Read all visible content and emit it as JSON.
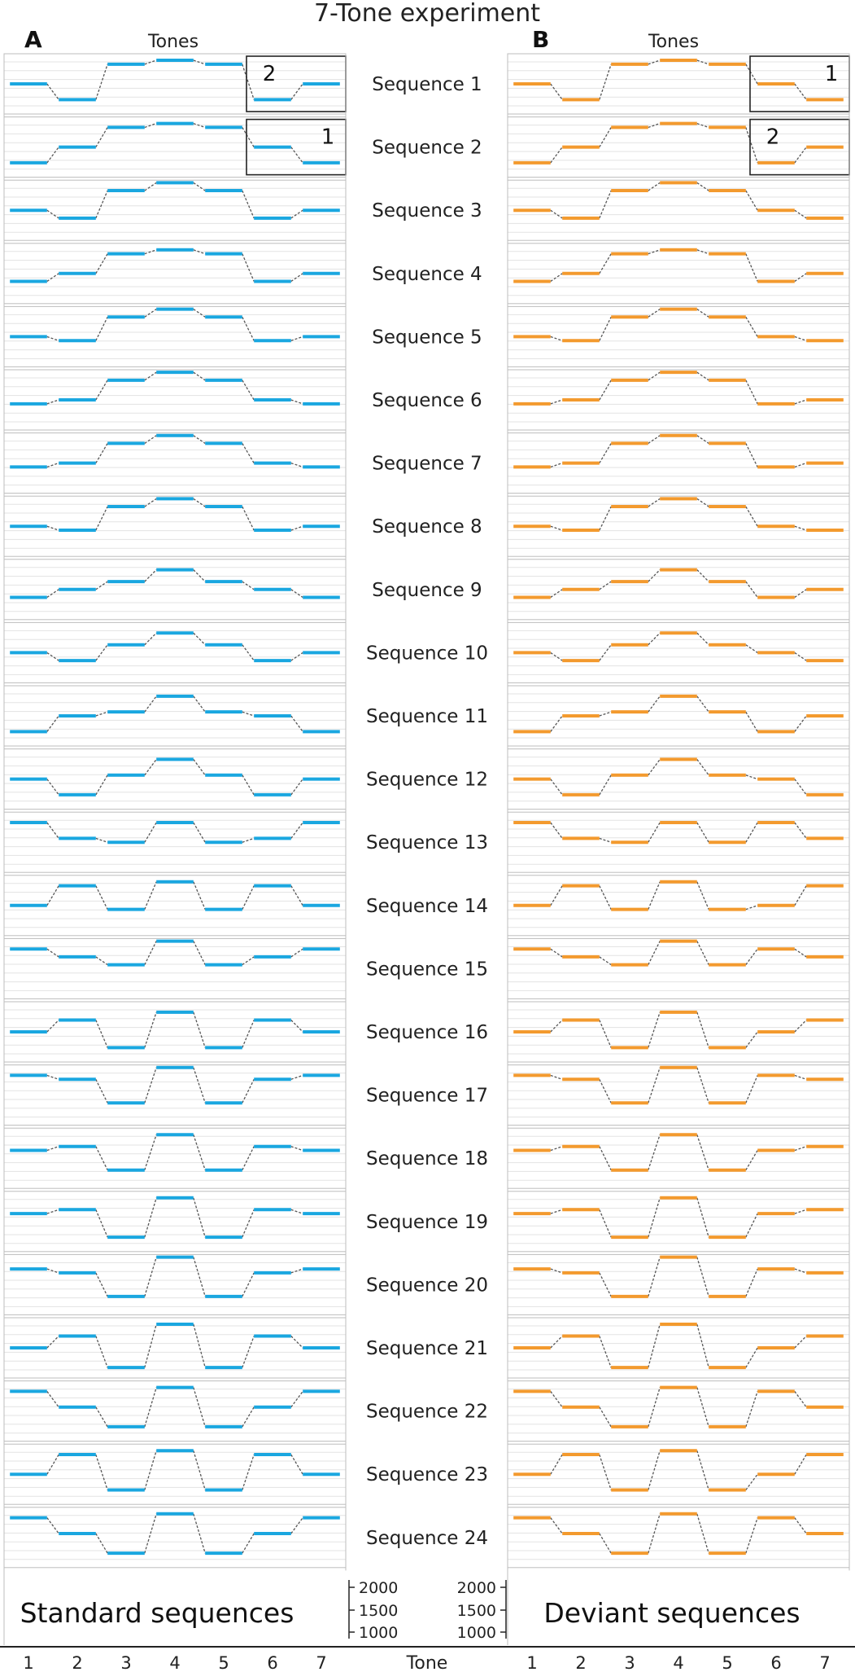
{
  "title": "7-Tone experiment",
  "panel_a": {
    "letter": "A",
    "header": "Tones",
    "caption": "Standard sequences"
  },
  "panel_b": {
    "letter": "B",
    "header": "Tones",
    "caption": "Deviant sequences"
  },
  "x_axis": {
    "label": "Tone",
    "ticks": [
      "1",
      "2",
      "3",
      "4",
      "5",
      "6",
      "7"
    ]
  },
  "y_axis": {
    "ticks": [
      "2000",
      "1500",
      "1000"
    ]
  },
  "colors": {
    "standard": "#1aa7e0",
    "deviant": "#f39a2e",
    "connector": "#555555",
    "grid": "#e3e3e3",
    "border": "#bdbdbd"
  },
  "chart_data": {
    "type": "line",
    "x": [
      1,
      2,
      3,
      4,
      5,
      6,
      7
    ],
    "ylim": [
      900,
      2100
    ],
    "ylabel": "",
    "xlabel": "Tone",
    "annotations": {
      "standard": [
        {
          "sequence": 1,
          "tones": [
            6,
            7
          ],
          "label": "2"
        },
        {
          "sequence": 2,
          "tones": [
            6,
            7
          ],
          "label": "1"
        }
      ],
      "deviant": [
        {
          "sequence": 1,
          "tones": [
            6,
            7
          ],
          "label": "1"
        },
        {
          "sequence": 2,
          "tones": [
            6,
            7
          ],
          "label": "2"
        }
      ]
    },
    "series": [
      {
        "name": "Sequence 1",
        "standard": [
          1500,
          1100,
          2000,
          2100,
          2000,
          1100,
          1500
        ],
        "deviant": [
          1500,
          1100,
          2000,
          2100,
          2000,
          1500,
          1100
        ]
      },
      {
        "name": "Sequence 2",
        "standard": [
          1100,
          1500,
          2000,
          2100,
          2000,
          1500,
          1100
        ],
        "deviant": [
          1100,
          1500,
          2000,
          2100,
          2000,
          1100,
          1500
        ]
      },
      {
        "name": "Sequence 3",
        "standard": [
          1500,
          1300,
          2000,
          2200,
          2000,
          1300,
          1500
        ],
        "deviant": [
          1500,
          1300,
          2000,
          2200,
          2000,
          1500,
          1300
        ]
      },
      {
        "name": "Sequence 4",
        "standard": [
          1300,
          1500,
          2000,
          2100,
          2000,
          1300,
          1500
        ],
        "deviant": [
          1300,
          1500,
          2000,
          2100,
          2000,
          1300,
          1500
        ]
      },
      {
        "name": "Sequence 5",
        "standard": [
          1500,
          1400,
          2000,
          2200,
          2000,
          1400,
          1500
        ],
        "deviant": [
          1500,
          1400,
          2000,
          2200,
          2000,
          1500,
          1400
        ]
      },
      {
        "name": "Sequence 6",
        "standard": [
          1400,
          1500,
          2000,
          2200,
          2000,
          1500,
          1400
        ],
        "deviant": [
          1400,
          1500,
          2000,
          2200,
          2000,
          1400,
          1500
        ]
      },
      {
        "name": "Sequence 7",
        "standard": [
          1400,
          1500,
          2000,
          2200,
          2000,
          1500,
          1400
        ],
        "deviant": [
          1400,
          1500,
          2000,
          2200,
          2000,
          1400,
          1500
        ]
      },
      {
        "name": "Sequence 8",
        "standard": [
          1500,
          1400,
          2000,
          2200,
          2000,
          1400,
          1500
        ],
        "deviant": [
          1500,
          1400,
          2000,
          2200,
          2000,
          1500,
          1400
        ]
      },
      {
        "name": "Sequence 9",
        "standard": [
          1300,
          1500,
          1700,
          2000,
          1700,
          1500,
          1300
        ],
        "deviant": [
          1300,
          1500,
          1700,
          2000,
          1700,
          1300,
          1500
        ]
      },
      {
        "name": "Sequence 10",
        "standard": [
          1500,
          1300,
          1700,
          2000,
          1700,
          1300,
          1500
        ],
        "deviant": [
          1500,
          1300,
          1700,
          2000,
          1700,
          1500,
          1300
        ]
      },
      {
        "name": "Sequence 11",
        "standard": [
          1100,
          1500,
          1600,
          2000,
          1600,
          1500,
          1100
        ],
        "deviant": [
          1100,
          1500,
          1600,
          2000,
          1600,
          1100,
          1500
        ]
      },
      {
        "name": "Sequence 12",
        "standard": [
          1500,
          1100,
          1600,
          2000,
          1600,
          1100,
          1500
        ],
        "deviant": [
          1500,
          1100,
          1600,
          2000,
          1600,
          1500,
          1100
        ]
      },
      {
        "name": "Sequence 13",
        "standard": [
          2000,
          1600,
          1500,
          2000,
          1500,
          1600,
          2000
        ],
        "deviant": [
          2000,
          1600,
          1500,
          2000,
          1500,
          2000,
          1600
        ]
      },
      {
        "name": "Sequence 14",
        "standard": [
          1500,
          2000,
          1400,
          2100,
          1400,
          2000,
          1500
        ],
        "deviant": [
          1500,
          2000,
          1400,
          2100,
          1400,
          1500,
          2000
        ]
      },
      {
        "name": "Sequence 15",
        "standard": [
          2000,
          1800,
          1600,
          2200,
          1600,
          1800,
          2000
        ],
        "deviant": [
          2000,
          1800,
          1600,
          2200,
          1600,
          2000,
          1800
        ]
      },
      {
        "name": "Sequence 16",
        "standard": [
          1500,
          1800,
          1100,
          2000,
          1100,
          1800,
          1500
        ],
        "deviant": [
          1500,
          1800,
          1100,
          2000,
          1100,
          1500,
          1800
        ]
      },
      {
        "name": "Sequence 17",
        "standard": [
          2000,
          1900,
          1300,
          2200,
          1300,
          1900,
          2000
        ],
        "deviant": [
          2000,
          1900,
          1300,
          2200,
          1300,
          2000,
          1900
        ]
      },
      {
        "name": "Sequence 18",
        "standard": [
          1700,
          1800,
          1200,
          2100,
          1200,
          1800,
          1700
        ],
        "deviant": [
          1700,
          1800,
          1200,
          2100,
          1200,
          1700,
          1800
        ]
      },
      {
        "name": "Sequence 19",
        "standard": [
          1700,
          1800,
          1100,
          2100,
          1100,
          1800,
          1700
        ],
        "deviant": [
          1700,
          1800,
          1100,
          2100,
          1100,
          1700,
          1800
        ]
      },
      {
        "name": "Sequence 20",
        "standard": [
          1900,
          1800,
          1200,
          2200,
          1200,
          1800,
          1900
        ],
        "deviant": [
          1900,
          1800,
          1200,
          2200,
          1200,
          1900,
          1800
        ]
      },
      {
        "name": "Sequence 21",
        "standard": [
          1500,
          1800,
          1000,
          2100,
          1000,
          1800,
          1500
        ],
        "deviant": [
          1500,
          1800,
          1000,
          2100,
          1000,
          1500,
          1800
        ]
      },
      {
        "name": "Sequence 22",
        "standard": [
          2000,
          1600,
          1100,
          2100,
          1100,
          1600,
          2000
        ],
        "deviant": [
          2000,
          1600,
          1100,
          2100,
          1100,
          2000,
          1600
        ]
      },
      {
        "name": "Sequence 23",
        "standard": [
          1500,
          2000,
          1100,
          2100,
          1100,
          2000,
          1500
        ],
        "deviant": [
          1500,
          2000,
          1100,
          2100,
          1100,
          1500,
          2000
        ]
      },
      {
        "name": "Sequence 24",
        "standard": [
          2000,
          1600,
          1100,
          2100,
          1100,
          1600,
          2000
        ],
        "deviant": [
          2000,
          1600,
          1100,
          2100,
          1100,
          2000,
          1600
        ]
      }
    ]
  }
}
